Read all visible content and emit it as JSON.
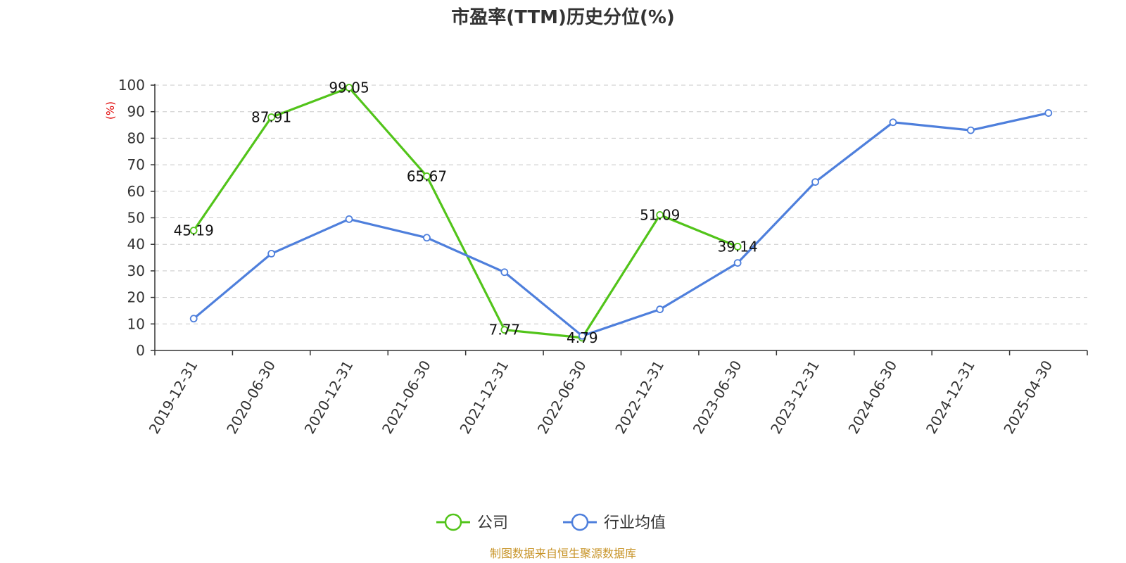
{
  "chart_data": {
    "type": "line",
    "title": "市盈率(TTM)历史分位(%)",
    "ylabel": "(%)",
    "ylim": [
      0,
      100
    ],
    "yticks": [
      0,
      10,
      20,
      30,
      40,
      50,
      60,
      70,
      80,
      90,
      100
    ],
    "grid": true,
    "legend_position": "bottom",
    "categories": [
      "2019-12-31",
      "2020-06-30",
      "2020-12-31",
      "2021-06-30",
      "2021-12-31",
      "2022-06-30",
      "2022-12-31",
      "2023-06-30",
      "2023-12-31",
      "2024-06-30",
      "2024-12-31",
      "2025-04-30"
    ],
    "series": [
      {
        "name": "公司",
        "color": "#52c41a",
        "values": [
          45.19,
          87.91,
          99.05,
          65.67,
          7.77,
          4.79,
          51.09,
          39.14,
          null,
          null,
          null,
          null
        ],
        "labels": [
          "45.19",
          "87.91",
          "99.05",
          "65.67",
          "7.77",
          "4.79",
          "51.09",
          "39.14",
          null,
          null,
          null,
          null
        ]
      },
      {
        "name": "行业均值",
        "color": "#4e7fdc",
        "values": [
          12.0,
          36.5,
          49.5,
          42.5,
          29.5,
          5.5,
          15.5,
          33.0,
          63.5,
          86.0,
          83.0,
          89.5
        ]
      }
    ],
    "source": "制图数据来自恒生聚源数据库"
  }
}
